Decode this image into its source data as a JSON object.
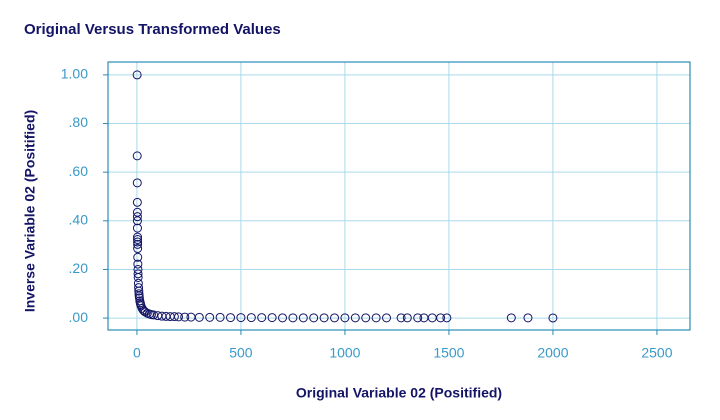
{
  "chart_data": {
    "type": "scatter",
    "title": "Original Versus Transformed Values",
    "x_label": "Original Variable 02 (Positified)",
    "y_label": "Inverse Variable 02 (Positified)",
    "x": [
      1,
      1.5,
      1.8,
      2.1,
      2.3,
      2.4,
      2.5,
      2.7,
      3,
      3.1,
      3.2,
      3.3,
      3.5,
      4,
      4.5,
      5,
      5.5,
      6,
      7,
      8,
      9,
      10,
      11,
      12,
      14,
      16,
      18,
      20,
      25,
      30,
      35,
      40,
      50,
      60,
      70,
      80,
      100,
      120,
      140,
      160,
      180,
      200,
      230,
      260,
      300,
      350,
      400,
      450,
      500,
      550,
      600,
      650,
      700,
      750,
      800,
      850,
      900,
      950,
      1000,
      1050,
      1100,
      1150,
      1200,
      1270,
      1300,
      1350,
      1380,
      1420,
      1460,
      1490,
      1800,
      1880,
      2000
    ],
    "y": [
      1,
      0.667,
      0.556,
      0.476,
      0.435,
      0.417,
      0.4,
      0.37,
      0.333,
      0.323,
      0.313,
      0.303,
      0.286,
      0.25,
      0.222,
      0.2,
      0.182,
      0.167,
      0.143,
      0.125,
      0.111,
      0.1,
      0.091,
      0.083,
      0.071,
      0.063,
      0.056,
      0.05,
      0.04,
      0.033,
      0.029,
      0.025,
      0.02,
      0.017,
      0.014,
      0.013,
      0.01,
      0.008,
      0.007,
      0.006,
      0.006,
      0.005,
      0.004,
      0.004,
      0.003,
      0.003,
      0.003,
      0.002,
      0.002,
      0.002,
      0.002,
      0.002,
      0.001,
      0.001,
      0.001,
      0.001,
      0.001,
      0.001,
      0.001,
      0.001,
      0.001,
      0.001,
      0.001,
      0.001,
      0.001,
      0.001,
      0.001,
      0.001,
      0.001,
      0.001,
      0.001,
      0.001,
      0.0005
    ],
    "color": "#141466",
    "xlim": [
      -139,
      2659
    ],
    "ylim": [
      -0.049,
      1.053
    ],
    "xticks": [
      0,
      500,
      1000,
      1500,
      2000,
      2500
    ],
    "yticks": [
      {
        "value": 0,
        "label": ".00"
      },
      {
        "value": 0.2,
        "label": ".20"
      },
      {
        "value": 0.4,
        "label": ".40"
      },
      {
        "value": 0.6,
        "label": ".60"
      },
      {
        "value": 0.8,
        "label": ".80"
      },
      {
        "value": 1,
        "label": "1.00"
      }
    ],
    "grid": true
  }
}
